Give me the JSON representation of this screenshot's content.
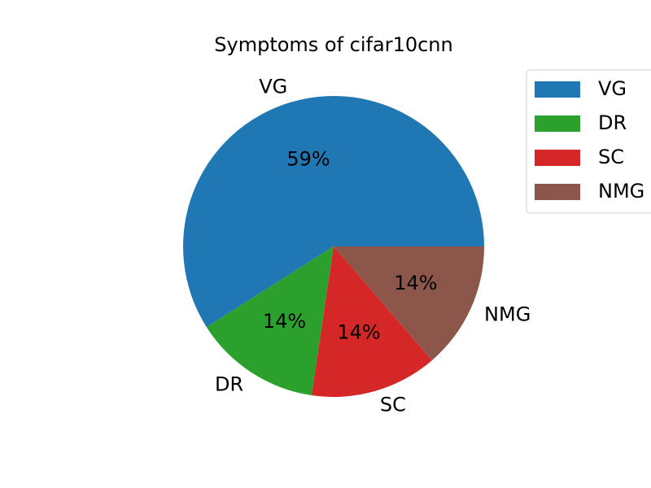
{
  "chart_data": {
    "type": "pie",
    "title": "Symptoms of cifar10cnn",
    "slices": [
      {
        "label": "VG",
        "value": 59,
        "pct_label": "59%",
        "color": "#1f77b4"
      },
      {
        "label": "DR",
        "value": 13.67,
        "pct_label": "14%",
        "color": "#2ca02c"
      },
      {
        "label": "SC",
        "value": 13.67,
        "pct_label": "14%",
        "color": "#d62728"
      },
      {
        "label": "NMG",
        "value": 13.66,
        "pct_label": "14%",
        "color": "#8c564b"
      }
    ],
    "start_angle_deg": 0,
    "direction": "counterclockwise",
    "legend_position": "top-right"
  }
}
